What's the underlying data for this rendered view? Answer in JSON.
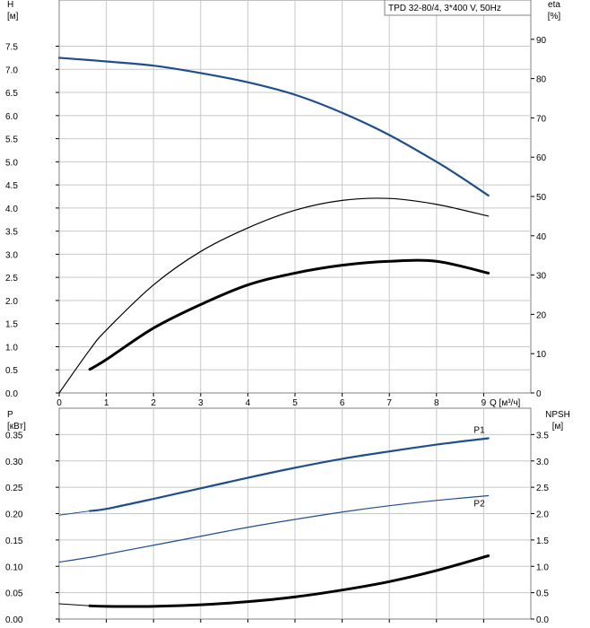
{
  "chart_data": [
    {
      "type": "line",
      "title": "TPD 32-80/4, 3*400 V, 50Hz",
      "xlabel": "Q [м³/ч]",
      "ylabel_left": "H",
      "ylabel_left_unit": "[м]",
      "ylabel_right": "eta",
      "ylabel_right_unit": "[%]",
      "xlim": [
        0,
        10
      ],
      "ylim_left": [
        0,
        8.5
      ],
      "ylim_right": [
        0,
        100
      ],
      "xticks": [
        "0",
        "1",
        "2",
        "3",
        "4",
        "5",
        "6",
        "7",
        "8",
        "9"
      ],
      "yticks_left": [
        "0.0",
        "0.5",
        "1.0",
        "1.5",
        "2.0",
        "2.5",
        "3.0",
        "3.5",
        "4.0",
        "4.5",
        "5.0",
        "5.5",
        "6.0",
        "6.5",
        "7.0",
        "7.5"
      ],
      "yticks_right": [
        "0",
        "10",
        "20",
        "30",
        "40",
        "50",
        "60",
        "70",
        "80",
        "90"
      ],
      "grid": true,
      "series": [
        {
          "axis": "left",
          "color": "#1f4e8c",
          "width": 2.2,
          "x": [
            0,
            0.65,
            1,
            2,
            3,
            4,
            5,
            6,
            7,
            8,
            8.5,
            9.1
          ],
          "y": [
            7.25,
            7.2,
            7.17,
            7.08,
            6.92,
            6.72,
            6.45,
            6.06,
            5.58,
            5.0,
            4.68,
            4.27
          ]
        },
        {
          "axis": "left",
          "color": "#1f4e8c",
          "width": 1.2,
          "x": [
            0,
            0.65
          ],
          "y": [
            7.25,
            7.2
          ]
        },
        {
          "axis": "right",
          "color": "#000000",
          "width": 1.2,
          "x": [
            0,
            0.65,
            1,
            2,
            3,
            4,
            5,
            6,
            7,
            8,
            9.1
          ],
          "y": [
            0,
            11,
            16,
            27.5,
            36,
            42,
            46.5,
            49,
            49.5,
            48,
            45
          ]
        },
        {
          "axis": "right",
          "color": "#000000",
          "width": 3,
          "x": [
            0.65,
            1,
            2,
            3,
            4,
            5,
            6,
            7,
            8,
            9.1
          ],
          "y": [
            6,
            8.5,
            16.5,
            22.5,
            27.5,
            30.5,
            32.5,
            33.5,
            33.5,
            30.5
          ]
        }
      ]
    },
    {
      "type": "line",
      "xlabel": "",
      "ylabel_left": "P",
      "ylabel_left_unit": "[кВт]",
      "ylabel_right": "NPSH",
      "ylabel_right_unit": "[м]",
      "xlim": [
        0,
        10
      ],
      "ylim_left": [
        0,
        0.4
      ],
      "ylim_right": [
        0,
        4
      ],
      "yticks_left": [
        "0.00",
        "0.05",
        "0.10",
        "0.15",
        "0.20",
        "0.25",
        "0.30",
        "0.35"
      ],
      "yticks_right": [
        "0.0",
        "0.5",
        "1.0",
        "1.5",
        "2.0",
        "2.5",
        "3.0",
        "3.5"
      ],
      "grid": true,
      "series": [
        {
          "name": "P1",
          "axis": "left",
          "color": "#1f4e8c",
          "width": 2.2,
          "x": [
            0.65,
            1,
            2,
            3,
            4,
            5,
            6,
            7,
            8,
            9.1
          ],
          "y": [
            0.205,
            0.209,
            0.228,
            0.248,
            0.268,
            0.287,
            0.304,
            0.318,
            0.331,
            0.343
          ]
        },
        {
          "axis": "left",
          "color": "#1f4e8c",
          "width": 1,
          "x": [
            0,
            0.65
          ],
          "y": [
            0.197,
            0.205
          ]
        },
        {
          "name": "P2",
          "axis": "left",
          "color": "#1f4e8c",
          "width": 1.2,
          "x": [
            0,
            0.65,
            1,
            2,
            3,
            4,
            5,
            6,
            7,
            8,
            9.1
          ],
          "y": [
            0.108,
            0.117,
            0.123,
            0.14,
            0.157,
            0.174,
            0.189,
            0.203,
            0.215,
            0.225,
            0.234
          ]
        },
        {
          "axis": "right",
          "color": "#000000",
          "width": 3,
          "x": [
            0.65,
            1,
            2,
            3,
            4,
            5,
            6,
            7,
            8,
            9.1
          ],
          "y": [
            0.25,
            0.24,
            0.24,
            0.27,
            0.33,
            0.42,
            0.55,
            0.71,
            0.92,
            1.2
          ]
        },
        {
          "axis": "right",
          "color": "#000000",
          "width": 1,
          "x": [
            0,
            0.65
          ],
          "y": [
            0.29,
            0.25
          ]
        }
      ]
    }
  ]
}
